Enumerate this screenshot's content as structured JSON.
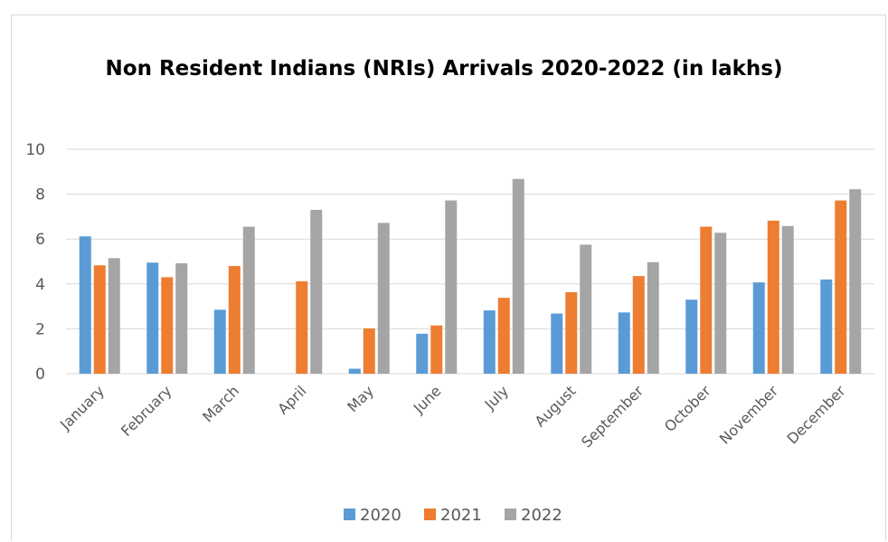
{
  "chart_data": {
    "type": "bar",
    "title": "Non Resident Indians (NRIs) Arrivals 2020-2022 (in lakhs)",
    "xlabel": "",
    "ylabel": "",
    "ylim": [
      0,
      10
    ],
    "yticks": [
      0,
      2,
      4,
      6,
      8,
      10
    ],
    "grid": true,
    "legend_position": "bottom",
    "categories": [
      "January",
      "February",
      "March",
      "April",
      "May",
      "June",
      "July",
      "August",
      "September",
      "October",
      "November",
      "December"
    ],
    "series": [
      {
        "name": "2020",
        "color": "#5B9BD5",
        "values": [
          6.12,
          4.95,
          2.85,
          0,
          0.22,
          1.78,
          2.82,
          2.68,
          2.73,
          3.3,
          4.07,
          4.2
        ]
      },
      {
        "name": "2021",
        "color": "#ED7D31",
        "values": [
          4.83,
          4.3,
          4.8,
          4.12,
          2.02,
          2.15,
          3.38,
          3.63,
          4.35,
          6.55,
          6.82,
          7.72
        ]
      },
      {
        "name": "2022",
        "color": "#A5A5A5",
        "values": [
          5.15,
          4.92,
          6.55,
          7.3,
          6.72,
          7.72,
          8.68,
          5.75,
          4.97,
          6.28,
          6.58,
          8.22
        ]
      }
    ]
  }
}
